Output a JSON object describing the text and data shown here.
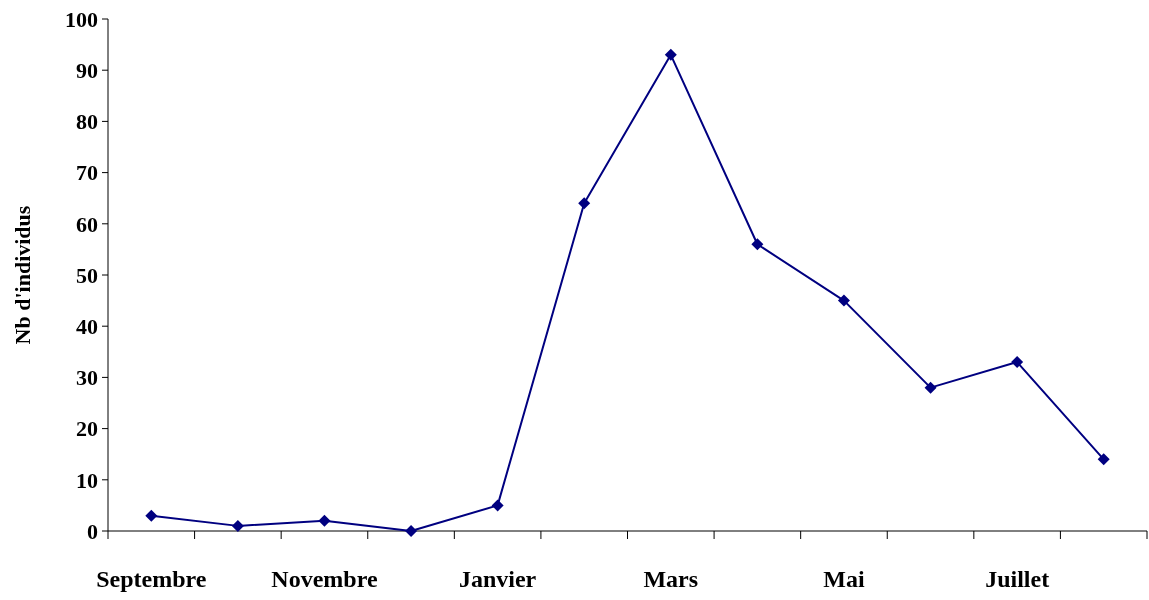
{
  "chart_data": {
    "type": "line",
    "ylabel": "Nb d'individus",
    "categories": [
      "Septembre",
      null,
      "Novembre",
      null,
      "Janvier",
      null,
      "Mars",
      null,
      "Mai",
      null,
      "Juillet",
      null
    ],
    "series": [
      {
        "color": "#000080",
        "values": [
          3,
          1,
          2,
          0,
          5,
          64,
          93,
          56,
          45,
          28,
          33,
          14
        ]
      }
    ],
    "ylim": [
      0,
      100
    ],
    "yticks": [
      0,
      10,
      20,
      30,
      40,
      50,
      60,
      70,
      80,
      90,
      100
    ],
    "marker": "diamond",
    "line_style": "solid",
    "grid": false
  }
}
